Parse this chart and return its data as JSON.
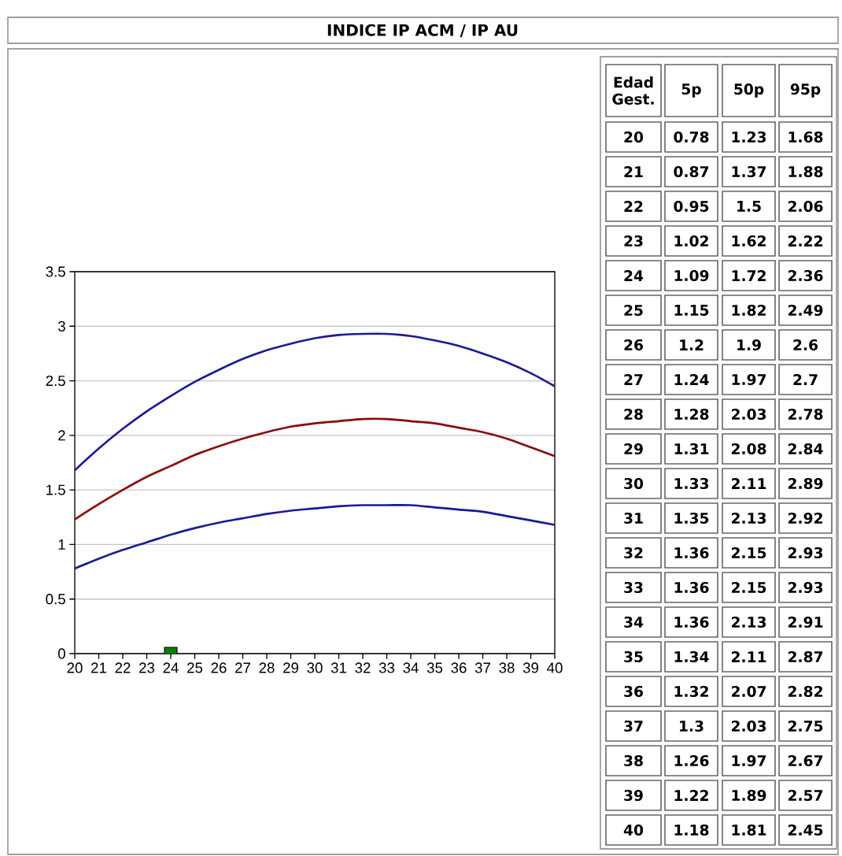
{
  "chart_data": [
    {
      "type": "line",
      "title": "INDICE IP ACM / IP AU",
      "x": [
        20,
        21,
        22,
        23,
        24,
        25,
        26,
        27,
        28,
        29,
        30,
        31,
        32,
        33,
        34,
        35,
        36,
        37,
        38,
        39,
        40
      ],
      "series": [
        {
          "color": "#1a1a9a",
          "values": [
            0.78,
            0.87,
            0.95,
            1.02,
            1.09,
            1.15,
            1.2,
            1.24,
            1.28,
            1.31,
            1.33,
            1.35,
            1.36,
            1.36,
            1.36,
            1.34,
            1.32,
            1.3,
            1.26,
            1.22,
            1.18
          ]
        },
        {
          "color": "#8b0a0a",
          "values": [
            1.23,
            1.37,
            1.5,
            1.62,
            1.72,
            1.82,
            1.9,
            1.97,
            2.03,
            2.08,
            2.11,
            2.13,
            2.15,
            2.15,
            2.13,
            2.11,
            2.07,
            2.03,
            1.97,
            1.89,
            1.81
          ]
        },
        {
          "color": "#1a1a9a",
          "values": [
            1.68,
            1.88,
            2.06,
            2.22,
            2.36,
            2.49,
            2.6,
            2.7,
            2.78,
            2.84,
            2.89,
            2.92,
            2.93,
            2.93,
            2.91,
            2.87,
            2.82,
            2.75,
            2.67,
            2.57,
            2.45
          ]
        },
        {
          "type": "scatter",
          "marker": "square",
          "color": "#008000",
          "x": [
            24
          ],
          "values": [
            0
          ]
        }
      ],
      "xlim": [
        20,
        40
      ],
      "ylim": [
        0,
        3.5
      ],
      "xticks": [
        20,
        21,
        22,
        23,
        24,
        25,
        26,
        27,
        28,
        29,
        30,
        31,
        32,
        33,
        34,
        35,
        36,
        37,
        38,
        39,
        40
      ],
      "yticks": [
        0,
        0.5,
        1,
        1.5,
        2,
        2.5,
        3,
        3.5
      ],
      "grid": "y",
      "marker": "none",
      "line_style": "solid"
    },
    {
      "type": "heatmap",
      "ylabel": "Edad Gest.",
      "categories": [
        "5p",
        "50p",
        "95p"
      ],
      "y_categories": [
        "20",
        "21",
        "22",
        "23",
        "24",
        "25",
        "26",
        "27",
        "28",
        "29",
        "30",
        "31",
        "32",
        "33",
        "34",
        "35",
        "36",
        "37",
        "38",
        "39",
        "40"
      ],
      "cells": [
        [
          0.78,
          1.23,
          1.68
        ],
        [
          0.87,
          1.37,
          1.88
        ],
        [
          0.95,
          1.5,
          2.06
        ],
        [
          1.02,
          1.62,
          2.22
        ],
        [
          1.09,
          1.72,
          2.36
        ],
        [
          1.15,
          1.82,
          2.49
        ],
        [
          1.2,
          1.9,
          2.6
        ],
        [
          1.24,
          1.97,
          2.7
        ],
        [
          1.28,
          2.03,
          2.78
        ],
        [
          1.31,
          2.08,
          2.84
        ],
        [
          1.33,
          2.11,
          2.89
        ],
        [
          1.35,
          2.13,
          2.92
        ],
        [
          1.36,
          2.15,
          2.93
        ],
        [
          1.36,
          2.15,
          2.93
        ],
        [
          1.36,
          2.13,
          2.91
        ],
        [
          1.34,
          2.11,
          2.87
        ],
        [
          1.32,
          2.07,
          2.82
        ],
        [
          1.3,
          2.03,
          2.75
        ],
        [
          1.26,
          1.97,
          2.67
        ],
        [
          1.22,
          1.89,
          2.57
        ],
        [
          1.18,
          1.81,
          2.45
        ]
      ],
      "data_labels": true
    }
  ]
}
